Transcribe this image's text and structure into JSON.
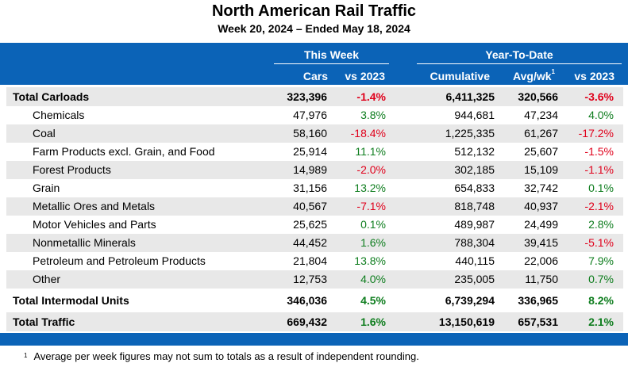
{
  "title": "North American Rail Traffic",
  "subtitle": "Week 20, 2024 – Ended May 18, 2024",
  "header": {
    "group_this_week": "This Week",
    "group_ytd": "Year-To-Date",
    "cols": [
      "Cars",
      "vs 2023",
      "Cumulative",
      "Avg/wk",
      "vs 2023"
    ],
    "avg_footnote_mark": "1"
  },
  "colors": {
    "header_bg": "#0b63b7",
    "positive": "#0e7d1e",
    "negative": "#e0001b",
    "row_alt": "#e8e8e8"
  },
  "rows": [
    {
      "label": "Total Carloads",
      "cars": "323,396",
      "wk_vs": "-1.4%",
      "cum": "6,411,325",
      "avg": "320,566",
      "ytd_vs": "-3.6%",
      "total": true
    },
    {
      "label": "Chemicals",
      "cars": "47,976",
      "wk_vs": "3.8%",
      "cum": "944,681",
      "avg": "47,234",
      "ytd_vs": "4.0%"
    },
    {
      "label": "Coal",
      "cars": "58,160",
      "wk_vs": "-18.4%",
      "cum": "1,225,335",
      "avg": "61,267",
      "ytd_vs": "-17.2%"
    },
    {
      "label": "Farm Products excl. Grain, and Food",
      "cars": "25,914",
      "wk_vs": "11.1%",
      "cum": "512,132",
      "avg": "25,607",
      "ytd_vs": "-1.5%"
    },
    {
      "label": "Forest Products",
      "cars": "14,989",
      "wk_vs": "-2.0%",
      "cum": "302,185",
      "avg": "15,109",
      "ytd_vs": "-1.1%"
    },
    {
      "label": "Grain",
      "cars": "31,156",
      "wk_vs": "13.2%",
      "cum": "654,833",
      "avg": "32,742",
      "ytd_vs": "0.1%"
    },
    {
      "label": "Metallic Ores and Metals",
      "cars": "40,567",
      "wk_vs": "-7.1%",
      "cum": "818,748",
      "avg": "40,937",
      "ytd_vs": "-2.1%"
    },
    {
      "label": "Motor Vehicles and Parts",
      "cars": "25,625",
      "wk_vs": "0.1%",
      "cum": "489,987",
      "avg": "24,499",
      "ytd_vs": "2.8%"
    },
    {
      "label": "Nonmetallic Minerals",
      "cars": "44,452",
      "wk_vs": "1.6%",
      "cum": "788,304",
      "avg": "39,415",
      "ytd_vs": "-5.1%"
    },
    {
      "label": "Petroleum and Petroleum Products",
      "cars": "21,804",
      "wk_vs": "13.8%",
      "cum": "440,115",
      "avg": "22,006",
      "ytd_vs": "7.9%"
    },
    {
      "label": "Other",
      "cars": "12,753",
      "wk_vs": "4.0%",
      "cum": "235,005",
      "avg": "11,750",
      "ytd_vs": "0.7%"
    },
    {
      "label": "Total Intermodal Units",
      "cars": "346,036",
      "wk_vs": "4.5%",
      "cum": "6,739,294",
      "avg": "336,965",
      "ytd_vs": "8.2%",
      "total": true
    },
    {
      "label": "Total Traffic",
      "cars": "669,432",
      "wk_vs": "1.6%",
      "cum": "13,150,619",
      "avg": "657,531",
      "ytd_vs": "2.1%",
      "total": true
    }
  ],
  "footnote": {
    "mark": "1",
    "text": "Average per week figures may not sum to totals as a result of independent rounding."
  }
}
